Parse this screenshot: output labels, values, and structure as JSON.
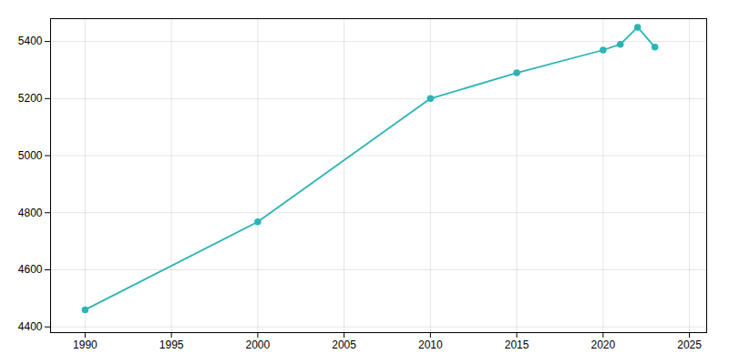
{
  "chart_data": {
    "type": "line",
    "x": [
      1990,
      2000,
      2010,
      2015,
      2020,
      2021,
      2022,
      2023
    ],
    "values": [
      4460,
      4768,
      5200,
      5290,
      5370,
      5390,
      5450,
      5380
    ],
    "color": "#2ab5b5",
    "marker": "circle",
    "xlim": [
      1988,
      2026
    ],
    "ylim": [
      4380,
      5480
    ],
    "xticks": [
      1990,
      1995,
      2000,
      2005,
      2010,
      2015,
      2020,
      2025
    ],
    "yticks": [
      4400,
      4600,
      4800,
      5000,
      5200,
      5400
    ],
    "grid": true
  }
}
